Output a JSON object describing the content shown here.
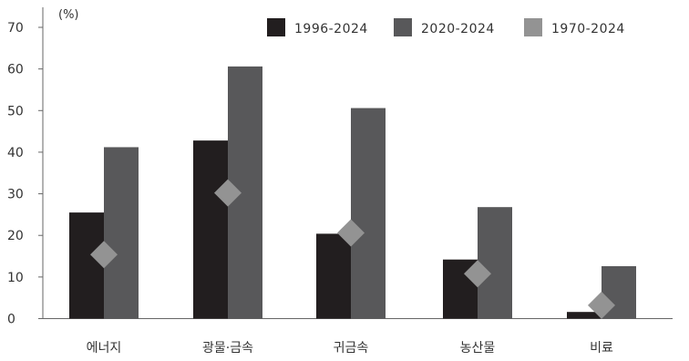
{
  "chart_data": {
    "type": "bar",
    "unit": "(%)",
    "categories": [
      "에너지",
      "광물·금속",
      "귀금속",
      "농산물",
      "비료"
    ],
    "ylim": [
      0,
      70
    ],
    "yticks": [
      0,
      10,
      20,
      30,
      40,
      50,
      60,
      70
    ],
    "series": [
      {
        "name": "1996-2024",
        "kind": "bar",
        "color": "#221e1f",
        "values": [
          25.5,
          42.8,
          20.4,
          14.2,
          1.6
        ]
      },
      {
        "name": "2020-2024",
        "kind": "bar",
        "color": "#58585a",
        "values": [
          41.2,
          60.6,
          50.6,
          26.8,
          12.6
        ]
      },
      {
        "name": "1970-2024",
        "kind": "marker",
        "color": "#939393",
        "values": [
          15.4,
          30.2,
          20.6,
          10.8,
          3.2
        ]
      }
    ],
    "legend_position": "top-right",
    "grid": false
  }
}
